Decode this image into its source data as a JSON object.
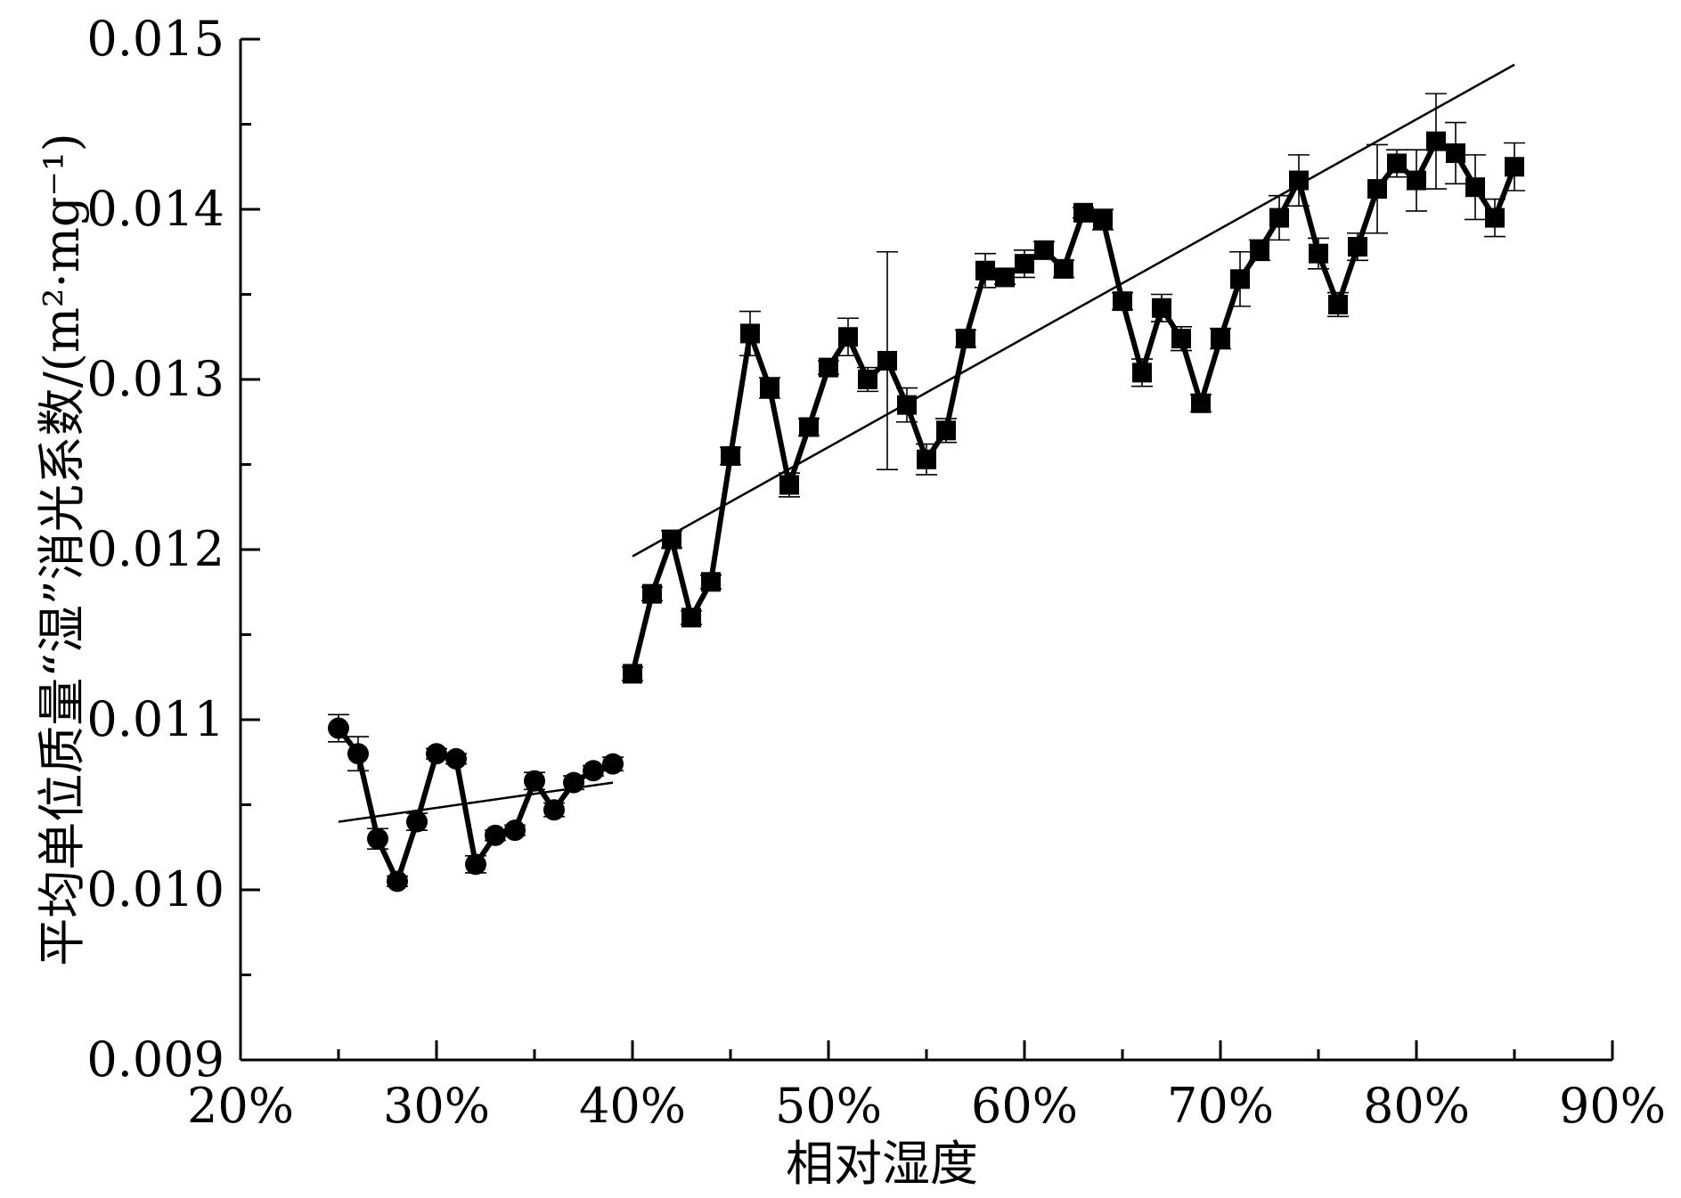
{
  "chart_data": {
    "type": "scatter",
    "xlabel": "相对湿度",
    "ylabel_main": "平均单位质量“湿”消光系数",
    "ylabel_unit": "/(m²·mg⁻¹)",
    "xlim": [
      20,
      90
    ],
    "ylim": [
      0.009,
      0.015
    ],
    "xticks": [
      20,
      30,
      40,
      50,
      60,
      70,
      80,
      90
    ],
    "xtick_labels": [
      "20%",
      "30%",
      "40%",
      "50%",
      "60%",
      "70%",
      "80%",
      "90%"
    ],
    "yticks": [
      0.009,
      0.01,
      0.011,
      0.012,
      0.013,
      0.014,
      0.015
    ],
    "ytick_labels": [
      "0.009",
      "0.010",
      "0.011",
      "0.012",
      "0.013",
      "0.014",
      "0.015"
    ],
    "series": [
      {
        "marker": "circle",
        "x": [
          25,
          26,
          27,
          28,
          29,
          30,
          31,
          32,
          33,
          34,
          35,
          36,
          37,
          38,
          39
        ],
        "y": [
          0.01095,
          0.0108,
          0.0103,
          0.01005,
          0.0104,
          0.0108,
          0.01077,
          0.01015,
          0.01032,
          0.01035,
          0.01064,
          0.01047,
          0.01063,
          0.0107,
          0.01074
        ],
        "err": [
          8e-05,
          0.0001,
          6e-05,
          3e-05,
          5e-05,
          3e-05,
          3e-05,
          5e-05,
          3e-05,
          3e-05,
          5e-05,
          4e-05,
          4e-05,
          3e-05,
          4e-05
        ],
        "fit": {
          "x": [
            25,
            39
          ],
          "y": [
            0.0104,
            0.01063
          ]
        }
      },
      {
        "marker": "square",
        "x": [
          40,
          41,
          42,
          43,
          44,
          45,
          46,
          47,
          48,
          49,
          50,
          51,
          52,
          53,
          54,
          55,
          56,
          57,
          58,
          59,
          60,
          61,
          62,
          63,
          64,
          65,
          66,
          67,
          68,
          69,
          70,
          71,
          72,
          73,
          74,
          75,
          76,
          77,
          78,
          79,
          80,
          81,
          82,
          83,
          84,
          85
        ],
        "y": [
          0.01127,
          0.01174,
          0.01206,
          0.0116,
          0.01181,
          0.01255,
          0.01327,
          0.01295,
          0.01238,
          0.01272,
          0.01307,
          0.01325,
          0.013,
          0.01311,
          0.01285,
          0.01253,
          0.0127,
          0.01324,
          0.01364,
          0.0136,
          0.01368,
          0.01376,
          0.01365,
          0.01398,
          0.01394,
          0.01346,
          0.01304,
          0.01342,
          0.01324,
          0.01286,
          0.01324,
          0.01359,
          0.01376,
          0.01395,
          0.01417,
          0.01374,
          0.01344,
          0.01378,
          0.01412,
          0.01427,
          0.01417,
          0.0144,
          0.01433,
          0.01413,
          0.01395,
          0.01425
        ],
        "err": [
          4e-05,
          4e-05,
          5e-05,
          4e-05,
          4e-05,
          5e-05,
          0.00013,
          6e-05,
          7e-05,
          5e-05,
          4e-05,
          0.00011,
          7e-05,
          0.00064,
          0.0001,
          9e-05,
          7e-05,
          5e-05,
          0.0001,
          4e-05,
          8e-05,
          5e-05,
          5e-05,
          3e-05,
          6e-05,
          5e-05,
          8e-05,
          8e-05,
          7e-05,
          5e-05,
          6e-05,
          0.00016,
          6e-05,
          0.00013,
          0.00015,
          9e-05,
          7e-05,
          8e-05,
          0.00026,
          8e-05,
          0.00018,
          0.00028,
          0.00018,
          0.00019,
          0.00011,
          0.00014
        ],
        "fit": {
          "x": [
            40,
            85
          ],
          "y": [
            0.01196,
            0.01485
          ]
        }
      }
    ],
    "grid": false,
    "legend": "none"
  }
}
